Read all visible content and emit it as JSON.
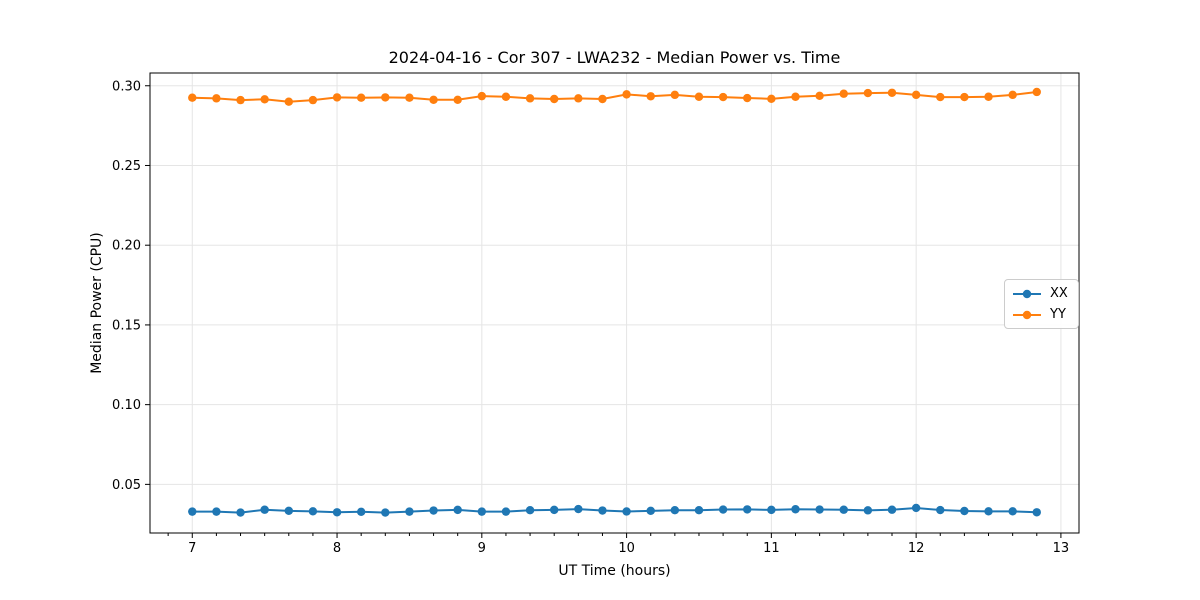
{
  "chart_data": {
    "type": "line",
    "title": "2024-04-16 - Cor 307 - LWA232 - Median Power vs. Time",
    "xlabel": "UT Time (hours)",
    "ylabel": "Median Power (CPU)",
    "xlim": [
      6.708,
      13.125
    ],
    "ylim": [
      0.0195,
      0.308
    ],
    "x_major_ticks": [
      7,
      8,
      9,
      10,
      11,
      12,
      13
    ],
    "x_minor_step": 0.1666667,
    "y_major_ticks": [
      0.05,
      0.1,
      0.15,
      0.2,
      0.25,
      0.3
    ],
    "grid": true,
    "legend_position": "center right",
    "x": [
      7.0,
      7.1667,
      7.3333,
      7.5,
      7.6667,
      7.8333,
      8.0,
      8.1667,
      8.3333,
      8.5,
      8.6667,
      8.8333,
      9.0,
      9.1667,
      9.3333,
      9.5,
      9.6667,
      9.8333,
      10.0,
      10.1667,
      10.3333,
      10.5,
      10.6667,
      10.8333,
      11.0,
      11.1667,
      11.3333,
      11.5,
      11.6667,
      11.8333,
      12.0,
      12.1667,
      12.3333,
      12.5,
      12.6667,
      12.8333
    ],
    "series": [
      {
        "name": "XX",
        "color": "#1f77b4",
        "values": [
          0.0329,
          0.0329,
          0.0323,
          0.0341,
          0.0334,
          0.0331,
          0.0325,
          0.0328,
          0.0323,
          0.0329,
          0.0336,
          0.034,
          0.0329,
          0.0329,
          0.0338,
          0.034,
          0.0345,
          0.0336,
          0.033,
          0.0334,
          0.0338,
          0.0338,
          0.0342,
          0.0343,
          0.034,
          0.0344,
          0.0342,
          0.0341,
          0.0337,
          0.0341,
          0.0352,
          0.0339,
          0.0333,
          0.0331,
          0.0331,
          0.0325
        ]
      },
      {
        "name": "YY",
        "color": "#ff7f0e",
        "values": [
          0.2925,
          0.2921,
          0.291,
          0.2915,
          0.29,
          0.291,
          0.2927,
          0.2925,
          0.2927,
          0.2925,
          0.2912,
          0.2912,
          0.2935,
          0.2931,
          0.2921,
          0.2917,
          0.2921,
          0.2917,
          0.2946,
          0.2934,
          0.2943,
          0.2931,
          0.2929,
          0.2923,
          0.2918,
          0.2931,
          0.2937,
          0.295,
          0.2954,
          0.2956,
          0.2943,
          0.2929,
          0.2929,
          0.2931,
          0.2943,
          0.2961
        ]
      }
    ]
  },
  "colors": {
    "grid": "#e5e5e5",
    "axis_border": "#000000",
    "tick": "#000000",
    "text": "#000000",
    "background": "#ffffff"
  }
}
